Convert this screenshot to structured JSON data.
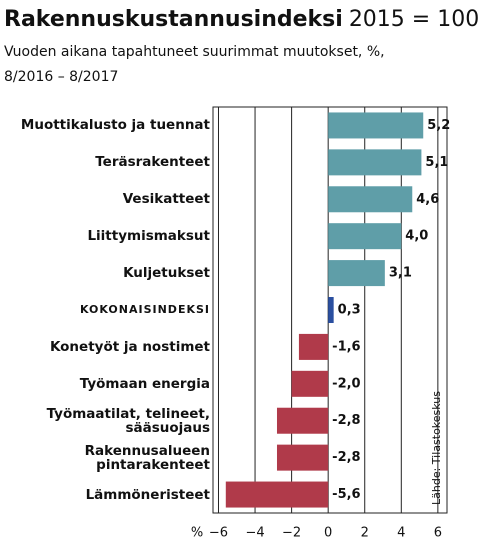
{
  "chart_data": {
    "type": "barh",
    "title": "Rakennuskustannusindeksi",
    "title_note": "2015 = 100",
    "subtitle": [
      "Vuoden aikana tapahtuneet suurimmat muutokset, %,",
      "8/2016 – 8/2017"
    ],
    "source": "Lähde: Tilastokeskus",
    "x_unit_label": "%",
    "categories": [
      "Muottikalusto ja tuennat",
      "Teräsrakenteet",
      "Vesikatteet",
      "Liittymismaksut",
      "Kuljetukset",
      "KOKONAISINDEKSI",
      "Konetyöt ja nostimet",
      "Työmaan energia",
      "Työmaatilat, telineet,\nsääsuojaus",
      "Rakennusalueen\npintarakenteet",
      "Lämmöneristeet"
    ],
    "values": [
      5.2,
      5.1,
      4.6,
      4.0,
      3.1,
      0.3,
      -1.6,
      -2.0,
      -2.8,
      -2.8,
      -5.6
    ],
    "value_labels": [
      "5,2",
      "5,1",
      "4,6",
      "4,0",
      "3,1",
      "0,3",
      "-1,6",
      "-2,0",
      "-2,8",
      "-2,8",
      "-5,6"
    ],
    "colors": [
      "#5f9ea8",
      "#5f9ea8",
      "#5f9ea8",
      "#5f9ea8",
      "#5f9ea8",
      "#2a4fa0",
      "#b03a4a",
      "#b03a4a",
      "#b03a4a",
      "#b03a4a",
      "#b03a4a"
    ],
    "xlim": [
      -6.3,
      6.5
    ],
    "xticks": [
      {
        "value": -6,
        "label": "−6"
      },
      {
        "value": -4,
        "label": "−4"
      },
      {
        "value": -2,
        "label": "−2"
      },
      0,
      2,
      4,
      6
    ],
    "grid": true
  }
}
